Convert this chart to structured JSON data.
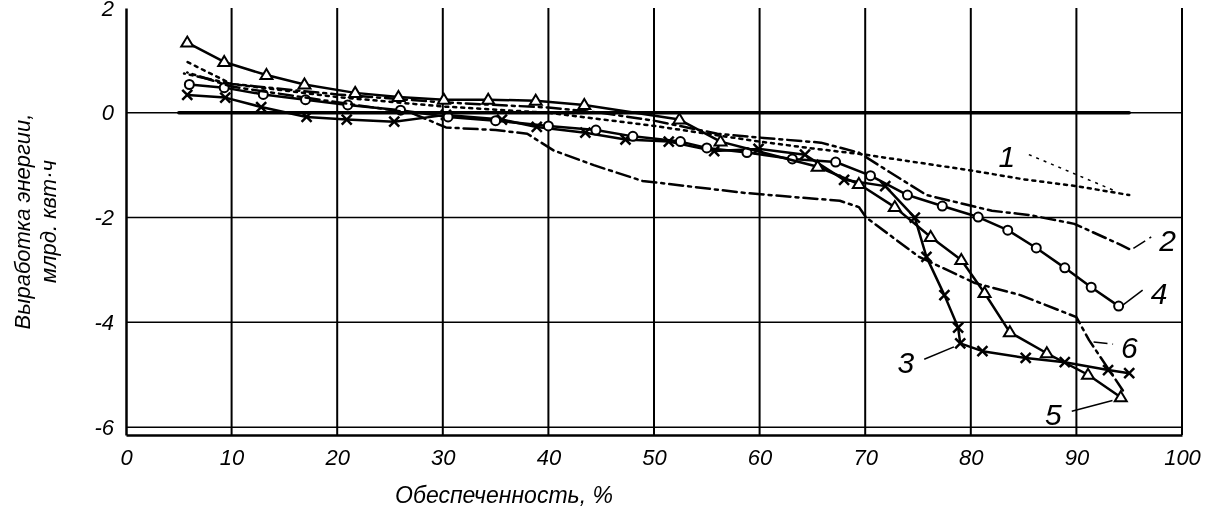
{
  "chart_data": {
    "type": "line",
    "xlabel": "Обеспеченность, %",
    "ylabel": "Выработка энергии,\nмлрд. квт·ч",
    "xlim": [
      0,
      100
    ],
    "ylim": [
      -6.15,
      2
    ],
    "xticks": [
      0,
      10,
      20,
      30,
      40,
      50,
      60,
      70,
      80,
      90,
      100
    ],
    "yticks": [
      2,
      0,
      -2,
      -4,
      -6
    ],
    "grid": true,
    "legend": "right",
    "series": [
      {
        "name": "1",
        "color": "#000000",
        "line_style": "dotted",
        "marker": "none",
        "x": [
          5.5,
          10,
          20,
          30,
          40,
          50,
          60,
          65,
          70,
          75,
          80,
          85,
          90,
          95
        ],
        "values": [
          1.0,
          0.55,
          0.3,
          0.12,
          0.0,
          -0.25,
          -0.55,
          -0.68,
          -0.8,
          -0.95,
          -1.1,
          -1.27,
          -1.4,
          -1.57
        ]
      },
      {
        "name": "2",
        "color": "#000000",
        "line_style": "dashed",
        "marker": "none",
        "x": [
          5.5,
          10,
          20,
          30,
          40,
          45,
          50,
          56,
          60.4,
          65.8,
          69.4,
          72.3,
          75.8,
          82,
          85.5,
          89.8,
          94.2,
          95
        ],
        "values": [
          0.75,
          0.55,
          0.35,
          0.2,
          0.1,
          0.0,
          -0.15,
          -0.4,
          -0.48,
          -0.57,
          -0.76,
          -1.13,
          -1.57,
          -1.87,
          -1.95,
          -2.12,
          -2.52,
          -2.6
        ]
      },
      {
        "name": "3",
        "color": "#000000",
        "line_style": "solid",
        "marker": "cross",
        "x": [
          5.8,
          9.4,
          12.8,
          17.1,
          20.9,
          25.4,
          30.3,
          35.6,
          38.9,
          43.5,
          47.3,
          51.4,
          55.7,
          59.9,
          64.3,
          68,
          71.9,
          74.7,
          75.8,
          77.5,
          78.8,
          79,
          81.1,
          85.2,
          88.9,
          93,
          95
        ],
        "values": [
          0.34,
          0.29,
          0.11,
          -0.08,
          -0.13,
          -0.17,
          -0.04,
          -0.13,
          -0.27,
          -0.38,
          -0.51,
          -0.55,
          -0.73,
          -0.69,
          -0.8,
          -1.28,
          -1.4,
          -2.0,
          -2.75,
          -3.48,
          -4.1,
          -4.4,
          -4.55,
          -4.68,
          -4.76,
          -4.91,
          -4.97
        ]
      },
      {
        "name": "4",
        "color": "#000000",
        "line_style": "solid",
        "marker": "circle",
        "x": [
          6,
          9.3,
          13,
          17,
          21,
          26,
          30.5,
          35,
          40,
          44.5,
          48,
          52.5,
          55,
          58.8,
          63.1,
          67.2,
          70.5,
          74,
          77.3,
          80.7,
          83.5,
          86.2,
          88.9,
          91.4,
          94
        ],
        "values": [
          0.54,
          0.48,
          0.35,
          0.25,
          0.15,
          0.05,
          -0.08,
          -0.15,
          -0.25,
          -0.33,
          -0.45,
          -0.55,
          -0.67,
          -0.76,
          -0.88,
          -0.94,
          -1.2,
          -1.57,
          -1.78,
          -1.99,
          -2.24,
          -2.58,
          -2.96,
          -3.33,
          -3.69
        ]
      },
      {
        "name": "5",
        "color": "#000000",
        "line_style": "solid",
        "marker": "triangle",
        "x": [
          5.8,
          9.3,
          13.3,
          16.9,
          21.7,
          25.8,
          30.1,
          34.3,
          38.8,
          43.4,
          52.4,
          56.3,
          65.5,
          69.4,
          72.8,
          76.2,
          79.1,
          81.3,
          83.7,
          87.2,
          91.1,
          94.2
        ],
        "values": [
          1.34,
          0.97,
          0.72,
          0.54,
          0.38,
          0.3,
          0.25,
          0.25,
          0.23,
          0.15,
          -0.13,
          -0.55,
          -1.03,
          -1.36,
          -1.8,
          -2.37,
          -2.81,
          -3.44,
          -4.19,
          -4.59,
          -5.0,
          -5.43
        ]
      },
      {
        "name": "6",
        "color": "#000000",
        "line_style": "dashed",
        "marker": "none",
        "x": [
          5.8,
          10,
          20,
          27,
          30.3,
          35,
          38,
          40.5,
          44.3,
          48.9,
          58.6,
          67.6,
          69.4,
          70.1,
          75.1,
          80.4,
          84.7,
          90,
          91.2,
          94.4
        ],
        "values": [
          0.77,
          0.5,
          0.2,
          0.0,
          -0.28,
          -0.33,
          -0.4,
          -0.72,
          -1.0,
          -1.3,
          -1.53,
          -1.68,
          -1.8,
          -2.0,
          -2.75,
          -3.25,
          -3.48,
          -3.9,
          -4.34,
          -5.3
        ]
      },
      {
        "color": "#000000",
        "line_style": "solid",
        "marker": "none",
        "x": [
          5,
          95
        ],
        "values": [
          0,
          0
        ]
      }
    ]
  }
}
